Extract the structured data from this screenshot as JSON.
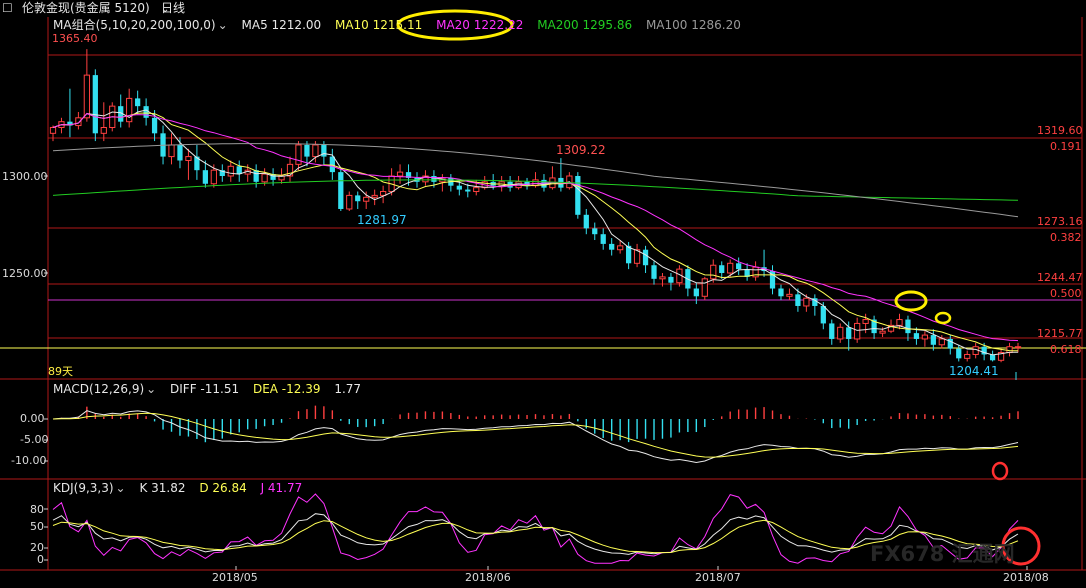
{
  "header": {
    "symbol_icon": "box-icon",
    "symbol": "伦敦金现(贵金属 5120)",
    "period": "日线",
    "dropdown_icon": "chevron-down-icon"
  },
  "price_panel": {
    "ma_title": "MA组合(5,10,20,200,100,0)",
    "ma_items": [
      {
        "label": "MA5 1212.00",
        "color": "#e8e8e8"
      },
      {
        "label": "MA10 1215.11",
        "color": "#ffff55"
      },
      {
        "label": "MA20 1222.22",
        "color": "#ff33ff"
      },
      {
        "label": "MA200 1295.86",
        "color": "#22cc22"
      },
      {
        "label": "MA100 1286.20",
        "color": "#888888"
      }
    ],
    "y_ticks": [
      "1300.00",
      "1250.00"
    ],
    "high_label": "1365.40",
    "annotations": [
      {
        "text": "1309.22",
        "color": "#ff5050"
      },
      {
        "text": "1281.97",
        "color": "#33ccff"
      },
      {
        "text": "1204.41",
        "color": "#33ccff"
      },
      {
        "text": "89天",
        "color": "#ffee44"
      }
    ],
    "levels": [
      {
        "price": "1319.60",
        "ratio": "0.191"
      },
      {
        "price": "1273.16",
        "ratio": "0.382"
      },
      {
        "price": "1244.47",
        "ratio": "0.500"
      },
      {
        "price": "1215.77",
        "ratio": "0.618"
      }
    ]
  },
  "macd_panel": {
    "title": "MACD(12,26,9)",
    "diff": "DIFF -11.51",
    "dea": "DEA -12.39",
    "macd": "1.77",
    "y_ticks": [
      "0.00",
      "-5.00",
      "-10.00"
    ]
  },
  "kdj_panel": {
    "title": "KDJ(9,3,3)",
    "k": "K 31.82",
    "d": "D 26.84",
    "j": "J 41.77",
    "y_ticks": [
      "80",
      "50",
      "20",
      "0"
    ]
  },
  "x_axis": {
    "labels": [
      "2018/05",
      "2018/06",
      "2018/07",
      "2018/08"
    ]
  },
  "watermark": "FX678 汇通网",
  "colors": {
    "up": "#ff4040",
    "down": "#33e0f0",
    "grid": "#b01818",
    "fib_line": "#ffff55",
    "mark_yellow": "#ffee00",
    "mark_red": "#ff3030"
  },
  "chart_data": {
    "type": "candlestick",
    "title": "伦敦金现(贵金属 5120) 日线",
    "y_range": [
      1200,
      1370
    ],
    "candles": [
      [
        1322,
        1325,
        1318,
        1326
      ],
      [
        1325,
        1328,
        1322,
        1330
      ],
      [
        1328,
        1326,
        1320,
        1345
      ],
      [
        1326,
        1330,
        1324,
        1333
      ],
      [
        1330,
        1352,
        1328,
        1365.4
      ],
      [
        1352,
        1322,
        1318,
        1355
      ],
      [
        1322,
        1325,
        1318,
        1338
      ],
      [
        1325,
        1336,
        1323,
        1338
      ],
      [
        1336,
        1328,
        1325,
        1342
      ],
      [
        1328,
        1340,
        1325,
        1345
      ],
      [
        1340,
        1336,
        1332,
        1344
      ],
      [
        1336,
        1330,
        1326,
        1340
      ],
      [
        1330,
        1322,
        1318,
        1334
      ],
      [
        1322,
        1310,
        1306,
        1326
      ],
      [
        1310,
        1316,
        1306,
        1322
      ],
      [
        1316,
        1308,
        1304,
        1320
      ],
      [
        1308,
        1310,
        1298,
        1314
      ],
      [
        1310,
        1303,
        1298,
        1316
      ],
      [
        1303,
        1296,
        1294,
        1308
      ],
      [
        1296,
        1303,
        1294,
        1306
      ],
      [
        1303,
        1300,
        1297,
        1306
      ],
      [
        1300,
        1305,
        1297,
        1308
      ],
      [
        1305,
        1301,
        1297,
        1308
      ],
      [
        1301,
        1303,
        1297,
        1306
      ],
      [
        1303,
        1297,
        1294,
        1306
      ],
      [
        1297,
        1301,
        1295,
        1304
      ],
      [
        1301,
        1298,
        1295,
        1304
      ],
      [
        1298,
        1300,
        1296,
        1304
      ],
      [
        1300,
        1306,
        1297,
        1310
      ],
      [
        1306,
        1316,
        1303,
        1318
      ],
      [
        1316,
        1310,
        1305,
        1318
      ],
      [
        1310,
        1316,
        1307,
        1318
      ],
      [
        1316,
        1310,
        1306,
        1318
      ],
      [
        1310,
        1302,
        1298,
        1314
      ],
      [
        1302,
        1283,
        1281.97,
        1304
      ],
      [
        1283,
        1290,
        1281.97,
        1292
      ],
      [
        1290,
        1287,
        1283,
        1292
      ],
      [
        1287,
        1289,
        1283,
        1292
      ],
      [
        1289,
        1290,
        1285,
        1293
      ],
      [
        1290,
        1292,
        1286,
        1295
      ],
      [
        1292,
        1300,
        1290,
        1304
      ],
      [
        1300,
        1302,
        1296,
        1306
      ],
      [
        1302,
        1299,
        1295,
        1306
      ],
      [
        1299,
        1297,
        1294,
        1302
      ],
      [
        1297,
        1300,
        1295,
        1303
      ],
      [
        1300,
        1297,
        1294,
        1303
      ],
      [
        1297,
        1299,
        1292,
        1301
      ],
      [
        1299,
        1295,
        1292,
        1301
      ],
      [
        1295,
        1293,
        1290,
        1298
      ],
      [
        1293,
        1292,
        1289,
        1296
      ],
      [
        1292,
        1294,
        1290,
        1298
      ],
      [
        1294,
        1297,
        1293,
        1300
      ],
      [
        1297,
        1295,
        1293,
        1301
      ],
      [
        1295,
        1297,
        1292,
        1300
      ],
      [
        1297,
        1294,
        1292,
        1300
      ],
      [
        1294,
        1297,
        1293,
        1300
      ],
      [
        1297,
        1295,
        1293,
        1299
      ],
      [
        1295,
        1298,
        1294,
        1302
      ],
      [
        1298,
        1294,
        1292,
        1301
      ],
      [
        1294,
        1299,
        1293,
        1305
      ],
      [
        1299,
        1294,
        1292,
        1309.22
      ],
      [
        1294,
        1300,
        1293,
        1302
      ],
      [
        1300,
        1280,
        1278,
        1302
      ],
      [
        1280,
        1273,
        1270,
        1283
      ],
      [
        1273,
        1270,
        1267,
        1276
      ],
      [
        1270,
        1265,
        1262,
        1273
      ],
      [
        1265,
        1262,
        1259,
        1268
      ],
      [
        1262,
        1264,
        1260,
        1267
      ],
      [
        1264,
        1255,
        1252,
        1266
      ],
      [
        1255,
        1262,
        1253,
        1265
      ],
      [
        1262,
        1254,
        1250,
        1264
      ],
      [
        1254,
        1247,
        1244,
        1256
      ],
      [
        1247,
        1248,
        1243,
        1250
      ],
      [
        1248,
        1245,
        1241,
        1250
      ],
      [
        1245,
        1252,
        1243,
        1254
      ],
      [
        1252,
        1242,
        1238,
        1254
      ],
      [
        1242,
        1238,
        1234,
        1245
      ],
      [
        1238,
        1247,
        1236,
        1248
      ],
      [
        1247,
        1254,
        1245,
        1257
      ],
      [
        1254,
        1250,
        1247,
        1256
      ],
      [
        1250,
        1255,
        1248,
        1257
      ],
      [
        1255,
        1252,
        1249,
        1258
      ],
      [
        1252,
        1248,
        1246,
        1255
      ],
      [
        1248,
        1253,
        1246,
        1256
      ],
      [
        1253,
        1251,
        1248,
        1262
      ],
      [
        1251,
        1242,
        1239,
        1254
      ],
      [
        1242,
        1238,
        1236,
        1244
      ],
      [
        1238,
        1239,
        1236,
        1242
      ],
      [
        1239,
        1233,
        1230,
        1242
      ],
      [
        1233,
        1237,
        1230,
        1239
      ],
      [
        1237,
        1233,
        1228,
        1239
      ],
      [
        1233,
        1224,
        1221,
        1235
      ],
      [
        1224,
        1216,
        1213,
        1226
      ],
      [
        1216,
        1222,
        1214,
        1224
      ],
      [
        1222,
        1216,
        1210,
        1225
      ],
      [
        1216,
        1224,
        1214,
        1227
      ],
      [
        1224,
        1226,
        1219,
        1229
      ],
      [
        1226,
        1219,
        1216,
        1228
      ],
      [
        1219,
        1220,
        1217,
        1222
      ],
      [
        1220,
        1223,
        1219,
        1226
      ],
      [
        1223,
        1226,
        1221,
        1229
      ],
      [
        1226,
        1219,
        1215,
        1228
      ],
      [
        1219,
        1216,
        1213,
        1222
      ],
      [
        1216,
        1218,
        1212,
        1220
      ],
      [
        1218,
        1213,
        1210,
        1221
      ],
      [
        1213,
        1216,
        1211,
        1218
      ],
      [
        1216,
        1211,
        1208,
        1218
      ],
      [
        1211,
        1206,
        1204.41,
        1213
      ],
      [
        1206,
        1208,
        1204.41,
        1210
      ],
      [
        1208,
        1212,
        1206,
        1214
      ],
      [
        1212,
        1208,
        1205,
        1214
      ],
      [
        1208,
        1205,
        1204.41,
        1210
      ],
      [
        1205,
        1209,
        1204,
        1211
      ],
      [
        1209,
        1212,
        1207,
        1214
      ],
      [
        1212,
        1212,
        1209,
        1214
      ]
    ],
    "moving_averages": [
      {
        "name": "MA5",
        "period": 5,
        "value": 1212.0
      },
      {
        "name": "MA10",
        "period": 10,
        "value": 1215.11
      },
      {
        "name": "MA20",
        "period": 20,
        "value": 1222.22
      },
      {
        "name": "MA200",
        "period": 200,
        "value": 1295.86
      },
      {
        "name": "MA100",
        "period": 100,
        "value": 1286.2
      }
    ],
    "fibonacci": [
      {
        "ratio": 0.191,
        "price": 1319.6
      },
      {
        "ratio": 0.382,
        "price": 1273.16
      },
      {
        "ratio": 0.5,
        "price": 1244.47
      },
      {
        "ratio": 0.618,
        "price": 1215.77
      }
    ],
    "macd": {
      "diff": -11.51,
      "dea": -12.39,
      "macd": 1.77,
      "y_range": [
        -13,
        2
      ]
    },
    "kdj": {
      "k": 31.82,
      "d": 26.84,
      "j": 41.77,
      "y_range": [
        0,
        100
      ]
    },
    "x_labels": [
      "2018/05",
      "2018/06",
      "2018/07",
      "2018/08"
    ]
  }
}
